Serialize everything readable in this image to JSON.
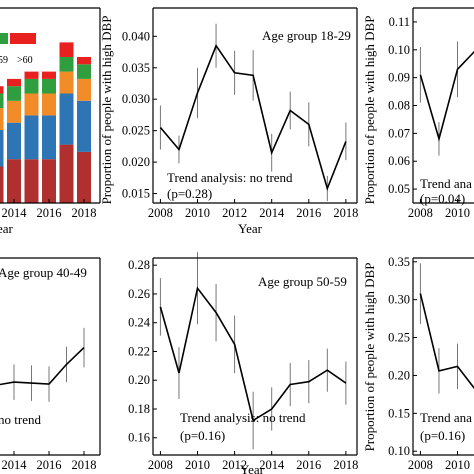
{
  "figure": {
    "background": "#ffffff",
    "line_color": "#000000"
  },
  "chart_data": [
    {
      "id": "stacked-bars",
      "type": "bar",
      "stacked": true,
      "x": [
        2012,
        2013,
        2014,
        2015,
        2016,
        2017,
        2018
      ],
      "xticks": [
        "2014",
        "2016",
        "2018"
      ],
      "xlabel": "ear",
      "legend": [
        "59",
        ">60"
      ],
      "series": [
        {
          "color": "#b03030",
          "values": [
            4,
            5,
            6,
            6,
            6,
            8,
            7
          ]
        },
        {
          "color": "#2e75b6",
          "values": [
            3,
            5,
            5,
            6,
            6,
            7,
            7
          ]
        },
        {
          "color": "#f28c28",
          "values": [
            1,
            3,
            3,
            3,
            3,
            3,
            3
          ]
        },
        {
          "color": "#2e9e3e",
          "values": [
            1,
            2,
            2,
            2,
            2,
            2,
            2
          ]
        },
        {
          "color": "#e82020",
          "values": [
            1,
            1,
            1,
            1,
            1,
            2,
            1
          ]
        }
      ]
    },
    {
      "id": "panel-18-29",
      "type": "line",
      "annotation": "Age group 18-29",
      "trend_text": "Trend analysis: no trend",
      "p_text": "(p=0.28)",
      "ylabel": "Proportion of  people with high DBP",
      "xlabel": "Year",
      "xlim": [
        2007.6,
        2018.6
      ],
      "ylim": [
        0.0135,
        0.0445
      ],
      "xticks": [
        "2008",
        "2010",
        "2012",
        "2014",
        "2016",
        "2018"
      ],
      "yticks": [
        "0.015",
        "0.020",
        "0.025",
        "0.030",
        "0.035",
        "0.040"
      ],
      "x": [
        2008,
        2009,
        2010,
        2011,
        2012,
        2013,
        2014,
        2015,
        2016,
        2017,
        2018
      ],
      "y": [
        0.0255,
        0.022,
        0.031,
        0.0385,
        0.0342,
        0.0338,
        0.0215,
        0.0282,
        0.026,
        0.0158,
        0.0233
      ],
      "err": [
        0.0035,
        0.0022,
        0.004,
        0.0035,
        0.0035,
        0.004,
        0.003,
        0.003,
        0.0035,
        0.002,
        0.003
      ]
    },
    {
      "id": "panel-30-39",
      "type": "line",
      "trend_text": "Trend ana",
      "p_text": "(p=0.04)",
      "ylabel": "Proportion of  people with high DBP",
      "xlim": [
        2007.6,
        2018.6
      ],
      "ylim": [
        0.045,
        0.115
      ],
      "xticks": [
        "2008",
        "2010"
      ],
      "yticks": [
        "0.05",
        "0.06",
        "0.07",
        "0.08",
        "0.09",
        "0.10",
        "0.11"
      ],
      "x": [
        2008,
        2009,
        2010,
        2011
      ],
      "y": [
        0.091,
        0.068,
        0.093,
        0.1
      ],
      "err": [
        0.01,
        0.006,
        0.01,
        0.01
      ]
    },
    {
      "id": "panel-40-49",
      "type": "line",
      "annotation": "Age group 40-49",
      "trend_text": "no trend",
      "xlim": [
        2007.6,
        2018.6
      ],
      "ylim": [
        0,
        1
      ],
      "xticks": [
        "2014",
        "2016",
        "2018"
      ],
      "x": [
        2012,
        2013,
        2014,
        2015,
        2016,
        2017,
        2018
      ],
      "y": [
        0.3,
        0.355,
        0.37,
        0.365,
        0.36,
        0.46,
        0.545
      ],
      "err": [
        0.08,
        0.09,
        0.09,
        0.09,
        0.09,
        0.09,
        0.1
      ]
    },
    {
      "id": "panel-50-59",
      "type": "line",
      "annotation": "Age group 50-59",
      "trend_text": "Trend analysis: no trend",
      "p_text": "(p=0.16)",
      "xlabel": "Year",
      "xlim": [
        2007.6,
        2018.6
      ],
      "ylim": [
        0.148,
        0.285
      ],
      "xticks": [
        "2008",
        "2010",
        "2012",
        "2014",
        "2016",
        "2018"
      ],
      "yticks": [
        "0.16",
        "0.18",
        "0.20",
        "0.22",
        "0.24",
        "0.26",
        "0.28"
      ],
      "x": [
        2008,
        2009,
        2010,
        2011,
        2012,
        2013,
        2014,
        2015,
        2016,
        2017,
        2018
      ],
      "y": [
        0.251,
        0.205,
        0.264,
        0.247,
        0.225,
        0.172,
        0.18,
        0.197,
        0.199,
        0.207,
        0.198
      ],
      "err": [
        0.02,
        0.018,
        0.025,
        0.02,
        0.02,
        0.02,
        0.015,
        0.015,
        0.015,
        0.015,
        0.015
      ]
    },
    {
      "id": "panel-60",
      "type": "line",
      "trend_text": "Trend ana",
      "p_text": "(p=0.16)",
      "ylabel": "Proportion of  people with high DBP",
      "xlim": [
        2007.6,
        2018.6
      ],
      "ylim": [
        0.095,
        0.355
      ],
      "xticks": [
        "2008",
        "2010"
      ],
      "yticks": [
        "0.10",
        "0.15",
        "0.20",
        "0.25",
        "0.30",
        "0.35"
      ],
      "x": [
        2008,
        2009,
        2010,
        2011
      ],
      "y": [
        0.308,
        0.206,
        0.212,
        0.18
      ],
      "err": [
        0.04,
        0.03,
        0.03,
        0.03
      ]
    }
  ]
}
